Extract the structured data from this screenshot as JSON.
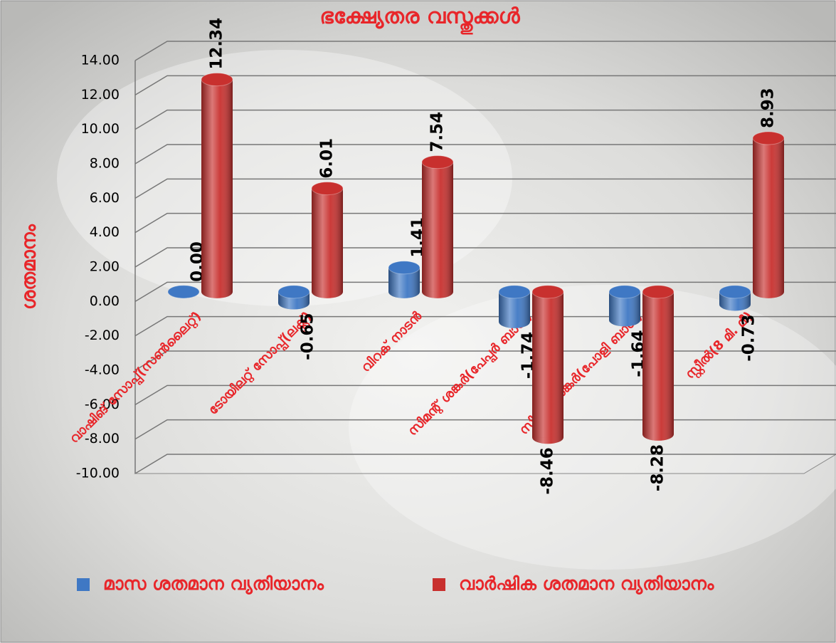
{
  "chart_data": {
    "type": "bar3d",
    "title": "ഭക്ഷ്യേതര വസ്തുക്കൾ",
    "y_label": "ശതമാനം",
    "categories": [
      "വാഷിങ് സോപ്പ്(സൺലൈറ്റ്)",
      "ടോയിലറ്റ് സോപ്പ്(ലക്സ്)",
      "വിറക് നാടൻ",
      "സിമന്റ് ശങ്കർ(പേപ്പർ ബാഗ്)",
      "സിമന്റ് ശങ്കർ(പോളി ബാഗ്)",
      "സ്റ്റീൽ(8 മി. മീ)"
    ],
    "series": [
      {
        "name": "മാസ ശതമാന വ്യതിയാനം",
        "color": "#3f78c4",
        "values": [
          0,
          -0.65,
          1.41,
          -1.74,
          -1.64,
          -0.73
        ],
        "value_labels": [
          "0.00",
          "-0.65",
          "1.41",
          "-1.74",
          "-1.64",
          "-0.73"
        ]
      },
      {
        "name": "വാർഷിക ശതമാന വ്യതിയാനം",
        "color": "#c8302e",
        "values": [
          12.34,
          6.01,
          7.54,
          -8.46,
          -8.28,
          8.93
        ],
        "value_labels": [
          "12.34",
          "6.01",
          "7.54",
          "-8.46",
          "-8.28",
          "8.93"
        ]
      }
    ],
    "ylim": [
      -10,
      14
    ],
    "yticks": [
      {
        "value": -10,
        "label": "-10.00"
      },
      {
        "value": -8,
        "label": "-8.00"
      },
      {
        "value": -6,
        "label": "-6.00"
      },
      {
        "value": -4,
        "label": "-4.00"
      },
      {
        "value": -2,
        "label": "-2.00"
      },
      {
        "value": 0,
        "label": "0.00"
      },
      {
        "value": 2,
        "label": "2.00"
      },
      {
        "value": 4,
        "label": "4.00"
      },
      {
        "value": 6,
        "label": "6.00"
      },
      {
        "value": 8,
        "label": "8.00"
      },
      {
        "value": 10,
        "label": "10.00"
      },
      {
        "value": 12,
        "label": "12.00"
      },
      {
        "value": 14,
        "label": "14.00"
      }
    ],
    "grid": true
  }
}
